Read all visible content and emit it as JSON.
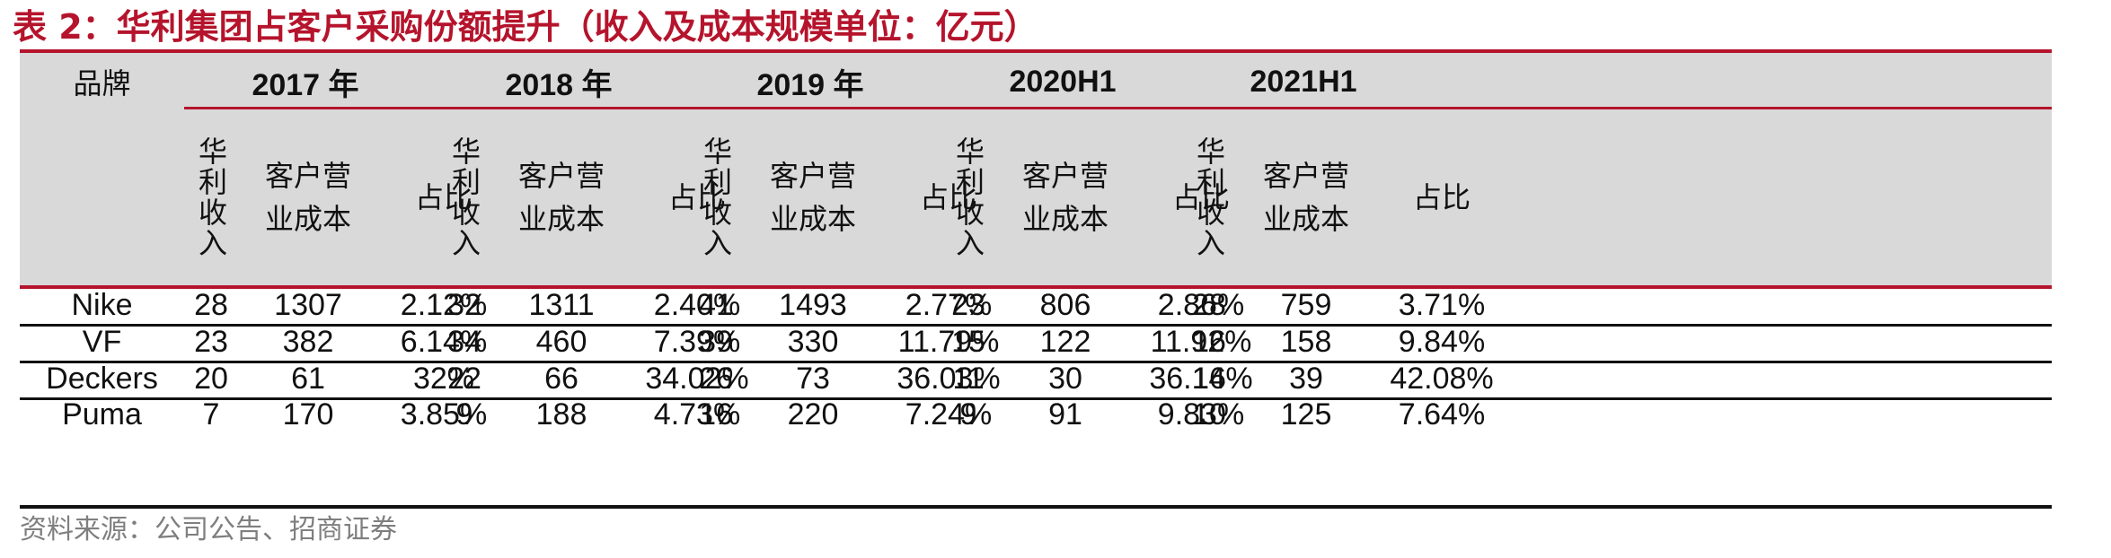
{
  "title": "表 2：华利集团占客户采购份额提升（收入及成本规模单位：亿元）",
  "header": {
    "brand_label": "品牌",
    "years": [
      "2017 年",
      "2018 年",
      "2019 年",
      "2020H1",
      "2021H1"
    ],
    "sub_revenue": "华利收入",
    "sub_cost_a": "客户营业成本",
    "sub_cost_b": "客户营业成本",
    "sub_share": "占比"
  },
  "rows": [
    {
      "brand": "Nike",
      "cells": [
        "28",
        "1307",
        "2.12%",
        "32",
        "1311",
        "2.40%",
        "41",
        "1493",
        "2.77%",
        "23",
        "806",
        "2.86%",
        "28",
        "759",
        "3.71%"
      ]
    },
    {
      "brand": "VF",
      "cells": [
        "23",
        "382",
        "6.14%",
        "34",
        "460",
        "7.39%",
        "39",
        "330",
        "11.79%",
        "15",
        "122",
        "11.92%",
        "16",
        "158",
        "9.84%"
      ]
    },
    {
      "brand": "Deckers",
      "cells": [
        "20",
        "61",
        "32%",
        "22",
        "66",
        "34.02%",
        "26",
        "73",
        "36.03%",
        "11",
        "30",
        "36.14%",
        "16",
        "39",
        "42.08%"
      ]
    },
    {
      "brand": "Puma",
      "cells": [
        "7",
        "170",
        "3.85%",
        "9",
        "188",
        "4.73%",
        "16",
        "220",
        "7.24%",
        "9",
        "91",
        "9.83%",
        "10",
        "125",
        "7.64%"
      ]
    }
  ],
  "source": "资料来源：公司公告、招商证券",
  "colors": {
    "accent": "#b5142c",
    "header_bg": "#d9d9d9",
    "source_text": "#7f7f7f"
  }
}
